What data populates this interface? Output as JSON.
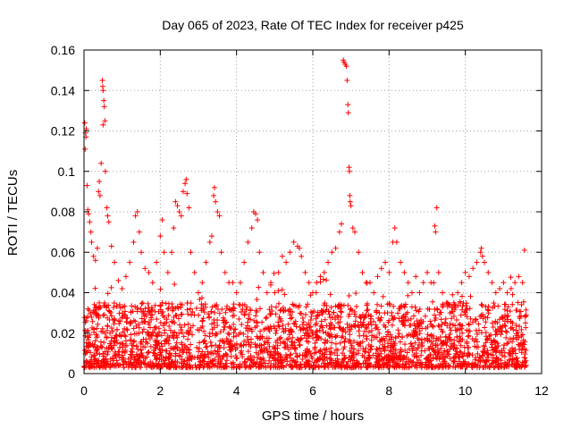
{
  "chart_data": {
    "type": "scatter",
    "title": "Day 065 of 2023, Rate Of TEC Index for receiver p425",
    "xlabel": "GPS time / hours",
    "ylabel": "ROTI / TECUs",
    "xlim": [
      0,
      12
    ],
    "ylim": [
      0,
      0.16
    ],
    "x_ticks": [
      0,
      2,
      4,
      6,
      8,
      10,
      12
    ],
    "x_tick_labels": [
      "0",
      "2",
      "4",
      "6",
      "8",
      "10",
      "12"
    ],
    "y_ticks": [
      0,
      0.02,
      0.04,
      0.06,
      0.08,
      0.1,
      0.12,
      0.14,
      0.16
    ],
    "y_tick_labels": [
      "0",
      "0.02",
      "0.04",
      "0.06",
      "0.08",
      "0.1",
      "0.12",
      "0.14",
      "0.16"
    ],
    "grid": true,
    "marker": "+",
    "marker_color": "#ff0000",
    "data_range_hours": [
      0,
      11.6
    ],
    "series": [
      {
        "name": "ROTI",
        "dense_band": {
          "description_values": "most points lie between ROTI 0.003 and 0.035",
          "y_low": 0.003,
          "y_high": 0.035
        },
        "points": [
          [
            0.02,
            0.124
          ],
          [
            0.04,
            0.119
          ],
          [
            0.06,
            0.121
          ],
          [
            0.03,
            0.111
          ],
          [
            0.05,
            0.117
          ],
          [
            0.08,
            0.093
          ],
          [
            0.1,
            0.081
          ],
          [
            0.12,
            0.079
          ],
          [
            0.15,
            0.075
          ],
          [
            0.18,
            0.07
          ],
          [
            0.2,
            0.065
          ],
          [
            0.25,
            0.058
          ],
          [
            0.3,
            0.056
          ],
          [
            0.35,
            0.062
          ],
          [
            0.38,
            0.09
          ],
          [
            0.4,
            0.095
          ],
          [
            0.42,
            0.088
          ],
          [
            0.45,
            0.104
          ],
          [
            0.48,
            0.145
          ],
          [
            0.49,
            0.142
          ],
          [
            0.5,
            0.14
          ],
          [
            0.52,
            0.135
          ],
          [
            0.53,
            0.132
          ],
          [
            0.5,
            0.123
          ],
          [
            0.55,
            0.125
          ],
          [
            0.56,
            0.1
          ],
          [
            0.6,
            0.082
          ],
          [
            0.62,
            0.078
          ],
          [
            0.65,
            0.075
          ],
          [
            0.72,
            0.063
          ],
          [
            0.8,
            0.055
          ],
          [
            0.9,
            0.046
          ],
          [
            1.0,
            0.042
          ],
          [
            1.1,
            0.048
          ],
          [
            1.2,
            0.055
          ],
          [
            1.3,
            0.065
          ],
          [
            1.35,
            0.078
          ],
          [
            1.4,
            0.08
          ],
          [
            1.45,
            0.07
          ],
          [
            1.5,
            0.06
          ],
          [
            1.6,
            0.052
          ],
          [
            1.7,
            0.05
          ],
          [
            1.8,
            0.045
          ],
          [
            1.9,
            0.055
          ],
          [
            2.0,
            0.068
          ],
          [
            2.05,
            0.076
          ],
          [
            2.1,
            0.06
          ],
          [
            2.2,
            0.05
          ],
          [
            2.3,
            0.06
          ],
          [
            2.35,
            0.072
          ],
          [
            2.4,
            0.085
          ],
          [
            2.45,
            0.083
          ],
          [
            2.5,
            0.08
          ],
          [
            2.55,
            0.078
          ],
          [
            2.6,
            0.09
          ],
          [
            2.65,
            0.094
          ],
          [
            2.68,
            0.096
          ],
          [
            2.7,
            0.089
          ],
          [
            2.75,
            0.082
          ],
          [
            2.8,
            0.06
          ],
          [
            2.9,
            0.05
          ],
          [
            3.0,
            0.04
          ],
          [
            3.1,
            0.045
          ],
          [
            3.2,
            0.055
          ],
          [
            3.3,
            0.065
          ],
          [
            3.35,
            0.068
          ],
          [
            3.4,
            0.088
          ],
          [
            3.42,
            0.092
          ],
          [
            3.45,
            0.085
          ],
          [
            3.5,
            0.08
          ],
          [
            3.55,
            0.078
          ],
          [
            3.6,
            0.06
          ],
          [
            3.7,
            0.05
          ],
          [
            3.8,
            0.045
          ],
          [
            3.9,
            0.045
          ],
          [
            4.0,
            0.04
          ],
          [
            4.1,
            0.045
          ],
          [
            4.2,
            0.055
          ],
          [
            4.3,
            0.065
          ],
          [
            4.4,
            0.072
          ],
          [
            4.45,
            0.08
          ],
          [
            4.5,
            0.079
          ],
          [
            4.55,
            0.076
          ],
          [
            4.6,
            0.06
          ],
          [
            4.7,
            0.05
          ],
          [
            4.8,
            0.04
          ],
          [
            4.9,
            0.045
          ],
          [
            5.0,
            0.04
          ],
          [
            5.1,
            0.05
          ],
          [
            5.2,
            0.058
          ],
          [
            5.3,
            0.055
          ],
          [
            5.4,
            0.06
          ],
          [
            5.5,
            0.065
          ],
          [
            5.6,
            0.063
          ],
          [
            5.65,
            0.062
          ],
          [
            5.7,
            0.058
          ],
          [
            5.8,
            0.05
          ],
          [
            5.9,
            0.045
          ],
          [
            6.0,
            0.04
          ],
          [
            6.1,
            0.045
          ],
          [
            6.2,
            0.048
          ],
          [
            6.3,
            0.05
          ],
          [
            6.4,
            0.055
          ],
          [
            6.5,
            0.06
          ],
          [
            6.6,
            0.062
          ],
          [
            6.7,
            0.07
          ],
          [
            6.75,
            0.074
          ],
          [
            6.8,
            0.155
          ],
          [
            6.82,
            0.154
          ],
          [
            6.85,
            0.153
          ],
          [
            6.88,
            0.152
          ],
          [
            6.9,
            0.145
          ],
          [
            6.92,
            0.133
          ],
          [
            6.93,
            0.129
          ],
          [
            6.95,
            0.102
          ],
          [
            6.96,
            0.1
          ],
          [
            6.97,
            0.088
          ],
          [
            6.98,
            0.085
          ],
          [
            7.0,
            0.083
          ],
          [
            7.05,
            0.072
          ],
          [
            7.1,
            0.07
          ],
          [
            7.2,
            0.06
          ],
          [
            7.3,
            0.05
          ],
          [
            7.4,
            0.045
          ],
          [
            7.5,
            0.045
          ],
          [
            7.6,
            0.04
          ],
          [
            7.7,
            0.048
          ],
          [
            7.8,
            0.052
          ],
          [
            7.9,
            0.055
          ],
          [
            8.0,
            0.05
          ],
          [
            8.1,
            0.065
          ],
          [
            8.15,
            0.072
          ],
          [
            8.2,
            0.065
          ],
          [
            8.3,
            0.055
          ],
          [
            8.4,
            0.05
          ],
          [
            8.5,
            0.045
          ],
          [
            8.6,
            0.04
          ],
          [
            8.7,
            0.048
          ],
          [
            8.8,
            0.04
          ],
          [
            8.9,
            0.045
          ],
          [
            9.0,
            0.05
          ],
          [
            9.1,
            0.045
          ],
          [
            9.2,
            0.073
          ],
          [
            9.22,
            0.07
          ],
          [
            9.25,
            0.082
          ],
          [
            9.3,
            0.05
          ],
          [
            9.4,
            0.04
          ],
          [
            9.5,
            0.035
          ],
          [
            9.6,
            0.03
          ],
          [
            9.7,
            0.035
          ],
          [
            9.8,
            0.04
          ],
          [
            9.9,
            0.045
          ],
          [
            10.0,
            0.05
          ],
          [
            10.1,
            0.048
          ],
          [
            10.2,
            0.052
          ],
          [
            10.3,
            0.055
          ],
          [
            10.4,
            0.06
          ],
          [
            10.42,
            0.062
          ],
          [
            10.45,
            0.058
          ],
          [
            10.5,
            0.055
          ],
          [
            10.6,
            0.05
          ],
          [
            10.7,
            0.045
          ],
          [
            10.8,
            0.04
          ],
          [
            10.9,
            0.042
          ],
          [
            11.0,
            0.045
          ],
          [
            11.1,
            0.04
          ],
          [
            11.2,
            0.042
          ],
          [
            11.3,
            0.045
          ],
          [
            11.4,
            0.048
          ],
          [
            11.5,
            0.045
          ],
          [
            11.55,
            0.061
          ]
        ]
      }
    ]
  }
}
